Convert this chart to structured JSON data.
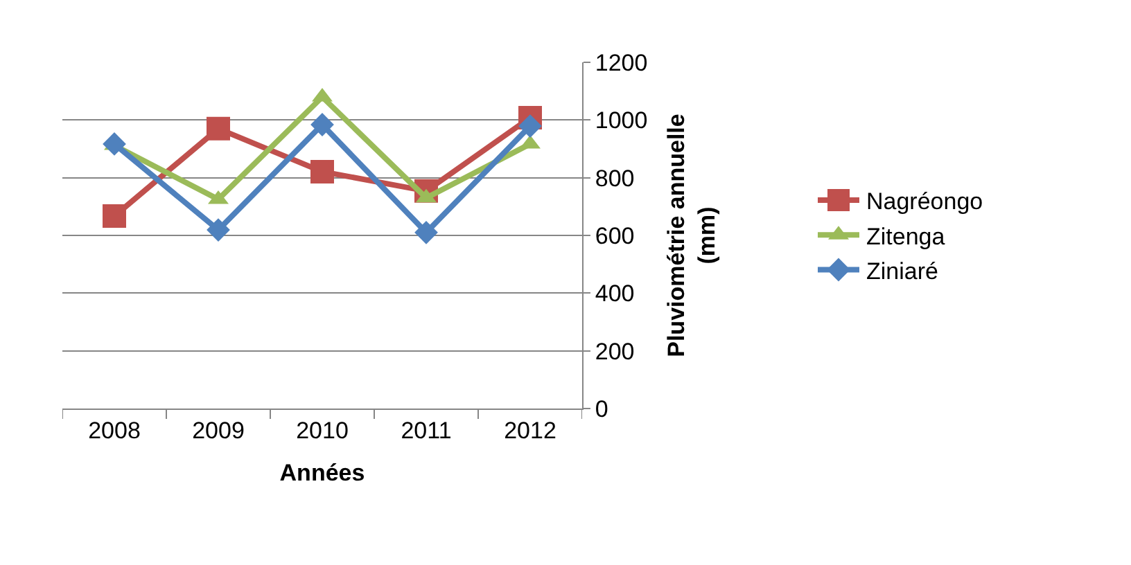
{
  "chart_data": {
    "type": "line",
    "xlabel": "Années",
    "ylabel": "Pluviométrie annuelle (mm)",
    "categories": [
      "2008",
      "2009",
      "2010",
      "2011",
      "2012"
    ],
    "series": [
      {
        "name": "Nagréongo",
        "color": "#c0504d",
        "marker": "square",
        "values": [
          667,
          970,
          821,
          754,
          1008
        ]
      },
      {
        "name": "Zitenga",
        "color": "#9bbb59",
        "marker": "triangle",
        "values": [
          912,
          725,
          1080,
          730,
          917
        ]
      },
      {
        "name": "Ziniaré",
        "color": "#4f81bd",
        "marker": "diamond",
        "values": [
          917,
          619,
          984,
          610,
          979
        ]
      }
    ],
    "ylim": [
      0,
      1200
    ],
    "yticks": [
      0,
      200,
      400,
      600,
      800,
      1000,
      1200
    ],
    "grid": "y",
    "legend": "right"
  }
}
